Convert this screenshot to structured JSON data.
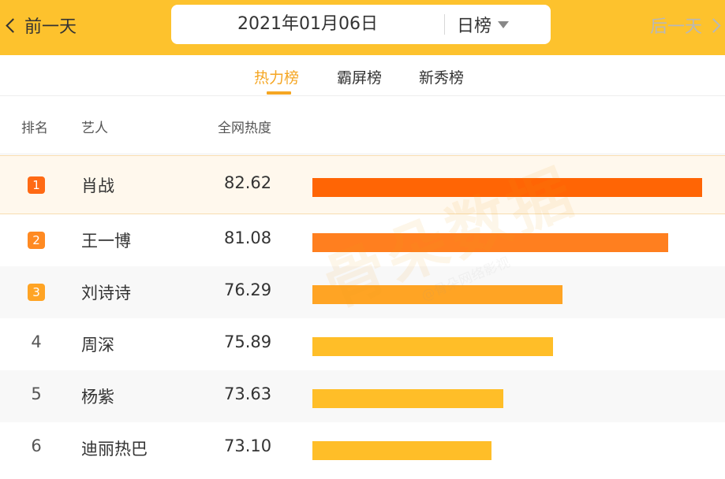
{
  "header": {
    "prev_label": "前一天",
    "next_label": "后一天",
    "date": "2021年01月06日",
    "period": "日榜"
  },
  "tabs": [
    {
      "label": "热力榜",
      "active": true
    },
    {
      "label": "霸屏榜",
      "active": false
    },
    {
      "label": "新秀榜",
      "active": false
    }
  ],
  "table": {
    "columns": [
      "排名",
      "艺人",
      "全网热度"
    ],
    "rows": [
      {
        "rank": "1",
        "name": "肖战",
        "score": "82.62",
        "value": 82.62,
        "bar_color": "#ff6505",
        "badge_color": "#ff6a14"
      },
      {
        "rank": "2",
        "name": "王一博",
        "score": "81.08",
        "value": 81.08,
        "bar_color": "#ff7f1f",
        "badge_color": "#ff8a22"
      },
      {
        "rank": "3",
        "name": "刘诗诗",
        "score": "76.29",
        "value": 76.29,
        "bar_color": "#ffa424",
        "badge_color": "#ffa424"
      },
      {
        "rank": "4",
        "name": "周深",
        "score": "75.89",
        "value": 75.89,
        "bar_color": "#ffbe28"
      },
      {
        "rank": "5",
        "name": "杨紫",
        "score": "73.63",
        "value": 73.63,
        "bar_color": "#ffbe28"
      },
      {
        "rank": "6",
        "name": "迪丽热巴",
        "score": "73.10",
        "value": 73.1,
        "bar_color": "#ffbe28"
      }
    ]
  },
  "watermark": {
    "brand": "骨朵数据",
    "sub": "@骨朵网络影视"
  },
  "colors": {
    "topbar": "#fdc22d",
    "accent": "#f5a623"
  }
}
